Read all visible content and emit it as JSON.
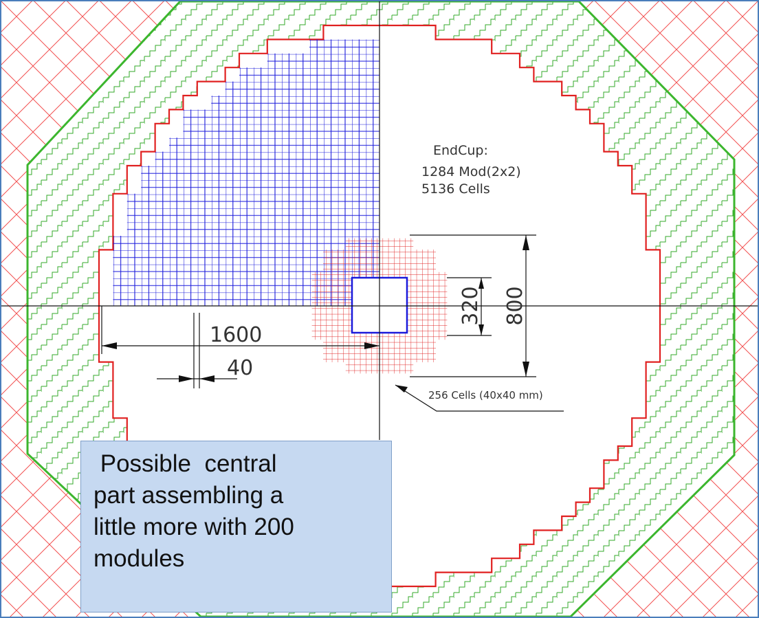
{
  "endcap": {
    "title": "EndCup:",
    "modules": "1284 Mod(2x2)",
    "cells": "5136 Cells"
  },
  "dimensions": {
    "outer_height": "800",
    "inner_height": "320",
    "radius": "1600",
    "cell_size": "40"
  },
  "central_label": "256 Cells (40x40 mm)",
  "callout": {
    "lines": [
      " Possible  central",
      "part assembling a",
      "little more with 200",
      "modules"
    ]
  }
}
